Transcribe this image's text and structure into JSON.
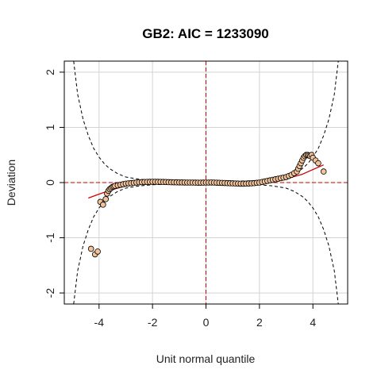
{
  "chart_data": {
    "type": "scatter",
    "title": "GB2: AIC =  1233090",
    "xlabel": "Unit normal quantile",
    "ylabel": "Deviation",
    "xlim": [
      -5.3,
      5.3
    ],
    "ylim": [
      -2.2,
      2.2
    ],
    "x_ticks": [
      -4,
      -2,
      0,
      2,
      4
    ],
    "x_tick_labels": [
      "-4",
      "-2",
      "0",
      "2",
      "4"
    ],
    "y_ticks": [
      -2,
      -1,
      0,
      1,
      2
    ],
    "y_tick_labels": [
      "-2",
      "-1",
      "0",
      "1",
      "2"
    ],
    "grid": true,
    "colors": {
      "grid": "#d3d3d3",
      "reference": "#cc0000",
      "trend": "#cc0000",
      "confidence": "#000000",
      "point_fill": "#f2c39a",
      "point_stroke": "#000000"
    },
    "series": [
      {
        "kind": "points",
        "x": [
          -4.3,
          -4.15,
          -4.05,
          -3.95,
          -3.85,
          -3.75,
          -3.7,
          -3.65,
          -3.6,
          -3.55,
          -3.5,
          -3.45,
          -3.4,
          -3.3,
          -3.2,
          -3.1,
          -3.0,
          -2.9,
          -2.8,
          -2.7,
          -2.6,
          -2.5,
          -2.4,
          -2.3,
          -2.2,
          -2.1,
          -2.0,
          -1.9,
          -1.8,
          -1.7,
          -1.6,
          -1.5,
          -1.4,
          -1.3,
          -1.2,
          -1.1,
          -1.0,
          -0.9,
          -0.8,
          -0.7,
          -0.6,
          -0.5,
          -0.4,
          -0.3,
          -0.2,
          -0.1,
          0.0,
          0.1,
          0.2,
          0.3,
          0.4,
          0.5,
          0.6,
          0.7,
          0.8,
          0.9,
          1.0,
          1.1,
          1.2,
          1.3,
          1.4,
          1.5,
          1.6,
          1.7,
          1.8,
          1.9,
          2.0,
          2.1,
          2.2,
          2.3,
          2.4,
          2.5,
          2.6,
          2.7,
          2.8,
          2.9,
          3.0,
          3.1,
          3.2,
          3.3,
          3.4,
          3.45,
          3.5,
          3.55,
          3.6,
          3.65,
          3.7,
          3.75,
          3.8,
          3.85,
          3.9,
          3.95,
          4.0,
          4.1,
          4.2,
          4.4
        ],
        "y": [
          -1.2,
          -1.3,
          -1.25,
          -0.35,
          -0.4,
          -0.3,
          -0.2,
          -0.15,
          -0.12,
          -0.1,
          -0.08,
          -0.07,
          -0.06,
          -0.05,
          -0.04,
          -0.03,
          -0.02,
          -0.015,
          -0.01,
          -0.005,
          0.0,
          0.005,
          0.008,
          0.01,
          0.012,
          0.013,
          0.014,
          0.014,
          0.013,
          0.012,
          0.011,
          0.01,
          0.008,
          0.006,
          0.005,
          0.004,
          0.003,
          0.002,
          0.001,
          0.0,
          0.0,
          0.0,
          -0.001,
          -0.002,
          -0.002,
          -0.001,
          0.0,
          0.0,
          0.001,
          0.0,
          -0.002,
          -0.004,
          -0.006,
          -0.008,
          -0.01,
          -0.012,
          -0.014,
          -0.016,
          -0.018,
          -0.02,
          -0.02,
          -0.019,
          -0.017,
          -0.014,
          -0.01,
          -0.005,
          0.0,
          0.01,
          0.02,
          0.03,
          0.04,
          0.05,
          0.06,
          0.07,
          0.08,
          0.09,
          0.1,
          0.12,
          0.14,
          0.17,
          0.2,
          0.25,
          0.3,
          0.35,
          0.4,
          0.45,
          0.48,
          0.5,
          0.5,
          0.49,
          0.48,
          0.5,
          0.45,
          0.4,
          0.35,
          0.2
        ]
      },
      {
        "kind": "trend-line",
        "x": [
          -4.4,
          -3.6,
          -3.0,
          -2.4,
          -1.8,
          -1.2,
          -0.6,
          0.0,
          0.6,
          1.2,
          1.8,
          2.4,
          3.0,
          3.6,
          4.4
        ],
        "y": [
          -0.28,
          -0.14,
          -0.06,
          -0.01,
          0.015,
          0.012,
          0.004,
          0.0,
          -0.004,
          -0.014,
          -0.014,
          0.02,
          0.07,
          0.15,
          0.32
        ]
      },
      {
        "kind": "confidence-band",
        "x": [
          -4.95,
          -4.8,
          -4.6,
          -4.4,
          -4.2,
          -4.0,
          -3.8,
          -3.6,
          -3.3,
          -3.0,
          -2.5,
          -2.0,
          -1.5,
          -1.0,
          -0.5,
          0.0,
          0.5,
          1.0,
          1.5,
          2.0,
          2.5,
          3.0,
          3.3,
          3.6,
          3.8,
          4.0,
          4.2,
          4.4,
          4.6,
          4.8,
          4.95
        ],
        "upper": [
          2.2,
          1.6,
          1.15,
          0.85,
          0.62,
          0.46,
          0.34,
          0.25,
          0.16,
          0.1,
          0.06,
          0.04,
          0.03,
          0.025,
          0.02,
          0.02,
          0.02,
          0.025,
          0.03,
          0.04,
          0.06,
          0.1,
          0.16,
          0.25,
          0.34,
          0.46,
          0.62,
          0.85,
          1.15,
          1.6,
          2.2
        ]
      }
    ]
  }
}
